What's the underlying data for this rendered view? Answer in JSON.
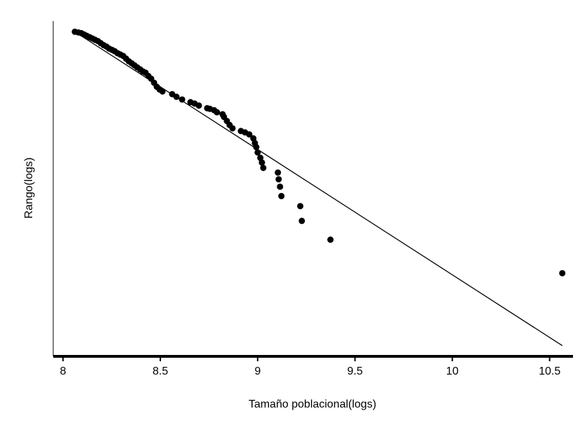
{
  "chart_data": {
    "type": "scatter",
    "x_label": "Tamaño poblacional(logs)",
    "y_label": "Rango(logs)",
    "color": "#000000",
    "x": [
      8.061,
      8.079,
      8.094,
      8.108,
      8.122,
      8.137,
      8.151,
      8.165,
      8.18,
      8.194,
      8.209,
      8.223,
      8.237,
      8.252,
      8.266,
      8.281,
      8.295,
      8.309,
      8.324,
      8.338,
      8.353,
      8.367,
      8.381,
      8.396,
      8.41,
      8.424,
      8.439,
      8.453,
      8.468,
      8.482,
      8.496,
      8.511,
      8.561,
      8.583,
      8.612,
      8.655,
      8.676,
      8.698,
      8.741,
      8.755,
      8.777,
      8.791,
      8.82,
      8.827,
      8.842,
      8.856,
      8.871,
      8.914,
      8.935,
      8.957,
      8.978,
      8.986,
      8.993,
      9.0,
      9.014,
      9.022,
      9.029,
      9.104,
      9.108,
      9.115,
      9.122,
      9.219,
      9.227,
      9.374,
      10.565
    ],
    "values": [
      4.84,
      4.83,
      4.82,
      4.8,
      4.78,
      4.76,
      4.74,
      4.72,
      4.7,
      4.67,
      4.64,
      4.62,
      4.59,
      4.57,
      4.55,
      4.52,
      4.5,
      4.48,
      4.44,
      4.4,
      4.37,
      4.34,
      4.31,
      4.28,
      4.25,
      4.23,
      4.18,
      4.14,
      4.08,
      4.02,
      3.98,
      3.95,
      3.91,
      3.87,
      3.83,
      3.79,
      3.77,
      3.74,
      3.7,
      3.69,
      3.67,
      3.64,
      3.61,
      3.57,
      3.51,
      3.45,
      3.4,
      3.36,
      3.34,
      3.31,
      3.25,
      3.18,
      3.12,
      3.04,
      2.96,
      2.89,
      2.81,
      2.74,
      2.64,
      2.53,
      2.39,
      2.24,
      2.02,
      1.74,
      1.24
    ],
    "fit_line": {
      "x": [
        8.061,
        10.565
      ],
      "values": [
        4.84,
        0.16
      ]
    },
    "xlim": [
      7.95,
      10.62
    ],
    "xticks": [
      8,
      8.5,
      9,
      9.5,
      10,
      10.5
    ],
    "ylim": [
      0,
      5
    ]
  }
}
